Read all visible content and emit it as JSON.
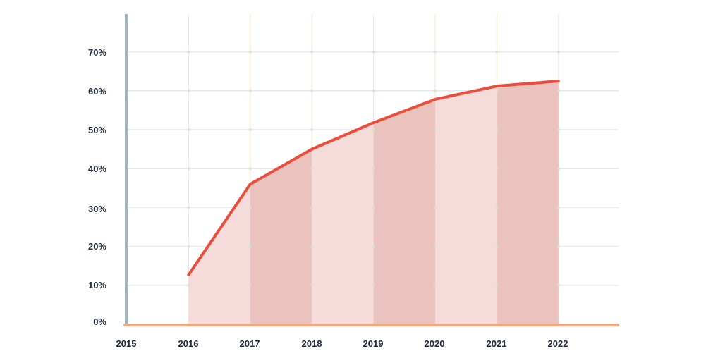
{
  "chart_data": {
    "type": "area",
    "title": "",
    "xlabel": "",
    "ylabel": "",
    "categories": [
      "2015",
      "2016",
      "2017",
      "2018",
      "2019",
      "2020",
      "2021",
      "2022"
    ],
    "series": [
      {
        "name": "value",
        "x": [
          "2016",
          "2017",
          "2018",
          "2019",
          "2020",
          "2021",
          "2022"
        ],
        "values": [
          12.7,
          36,
          45,
          51.8,
          57.8,
          61.2,
          62.5
        ]
      }
    ],
    "y_ticks": [
      "0%",
      "10%",
      "20%",
      "30%",
      "40%",
      "50%",
      "60%",
      "70%"
    ],
    "ylim": [
      0,
      70
    ],
    "grid": true,
    "legend": null
  },
  "colors": {
    "line": "#ec4d3a",
    "fill_light": "#f5dcda",
    "fill_dark": "#eac3be",
    "x_axis": "#f5a77a",
    "y_axis": "#9fb4c5",
    "grid_h": "#e3e9ee",
    "grid_v": "#f7e3cf",
    "grid_dot": "#cfe5cf",
    "label": "#1f2a3c"
  }
}
